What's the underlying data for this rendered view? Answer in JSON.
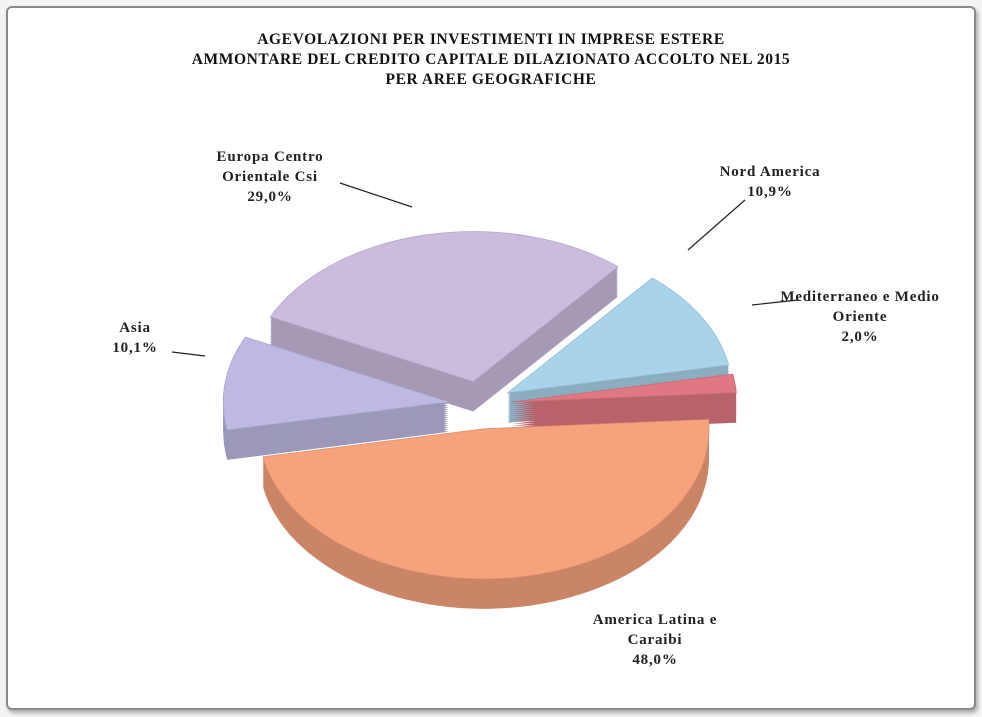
{
  "chart_data": {
    "type": "pie",
    "title": [
      "AGEVOLAZIONI PER INVESTIMENTI IN IMPRESE ESTERE",
      "AMMONTARE DEL CREDITO CAPITALE DILAZIONATO ACCOLTO NEL 2015",
      "PER AREE GEOGRAFICHE"
    ],
    "categories": [
      "Nord America",
      "Mediterraneo e Medio Oriente",
      "America Latina e Caraibi",
      "Asia",
      "Europa Centro Orientale Csi"
    ],
    "values": [
      10.9,
      2.0,
      48.0,
      10.1,
      29.0
    ],
    "value_labels": [
      "10,9%",
      "2,0%",
      "48,0%",
      "10,1%",
      "29,0%"
    ],
    "colors": [
      "#a9d3ea",
      "#e07883",
      "#f6a27c",
      "#bdb9e3",
      "#cbbbdd"
    ]
  }
}
